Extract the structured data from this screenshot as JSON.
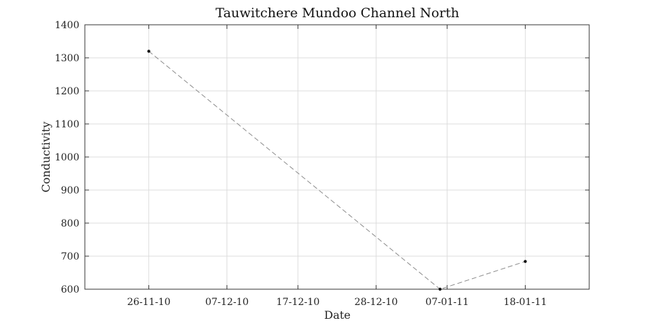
{
  "chart_data": {
    "type": "line",
    "title": "Tauwitchere Mundoo Channel North",
    "xlabel": "Date",
    "ylabel": "Conductivity",
    "x_ticks": [
      "26-11-10",
      "07-12-10",
      "17-12-10",
      "28-12-10",
      "07-01-11",
      "18-01-11"
    ],
    "y_ticks": [
      600,
      700,
      800,
      900,
      1000,
      1100,
      1200,
      1300,
      1400
    ],
    "ylim": [
      600,
      1400
    ],
    "xlim": [
      "2010-11-17",
      "2011-01-27"
    ],
    "grid": true,
    "series": [
      {
        "x": [
          "2010-11-26",
          "2011-01-06",
          "2011-01-18"
        ],
        "y": [
          1320,
          600,
          684
        ]
      }
    ],
    "colors": {
      "line": "#8a8a8a",
      "marker": "#111111",
      "grid": "#dcdcdc",
      "axis": "#333333"
    }
  }
}
